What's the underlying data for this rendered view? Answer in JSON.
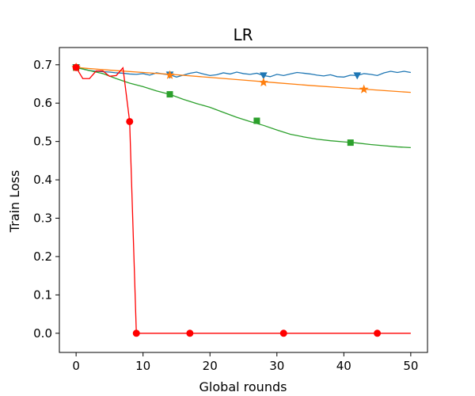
{
  "chart_data": {
    "type": "line",
    "title": "LR",
    "xlabel": "Global rounds",
    "ylabel": "Train Loss",
    "xlim": [
      -2.5,
      52.5
    ],
    "ylim": [
      -0.05,
      0.745
    ],
    "xticks": [
      0,
      10,
      20,
      30,
      40,
      50
    ],
    "yticks": [
      0.0,
      0.1,
      0.2,
      0.3,
      0.4,
      0.5,
      0.6,
      0.7
    ],
    "xtick_labels": [
      "0",
      "10",
      "20",
      "30",
      "40",
      "50"
    ],
    "ytick_labels": [
      "0.0",
      "0.1",
      "0.2",
      "0.3",
      "0.4",
      "0.5",
      "0.6",
      "0.7"
    ],
    "grid": false,
    "legend": "none",
    "series": [
      {
        "color": "#1f77b4",
        "marker": "triangle-down",
        "x": [
          0,
          1,
          2,
          3,
          4,
          5,
          6,
          7,
          8,
          9,
          10,
          11,
          12,
          13,
          14,
          15,
          16,
          17,
          18,
          19,
          20,
          21,
          22,
          23,
          24,
          25,
          26,
          27,
          28,
          29,
          30,
          31,
          32,
          33,
          34,
          35,
          36,
          37,
          38,
          39,
          40,
          41,
          42,
          43,
          44,
          45,
          46,
          47,
          48,
          49,
          50
        ],
        "y": [
          0.693,
          0.689,
          0.685,
          0.683,
          0.682,
          0.681,
          0.679,
          0.678,
          0.676,
          0.675,
          0.677,
          0.673,
          0.679,
          0.676,
          0.674,
          0.668,
          0.673,
          0.678,
          0.681,
          0.676,
          0.672,
          0.674,
          0.679,
          0.676,
          0.681,
          0.677,
          0.675,
          0.678,
          0.672,
          0.669,
          0.675,
          0.672,
          0.676,
          0.68,
          0.678,
          0.676,
          0.673,
          0.671,
          0.674,
          0.669,
          0.668,
          0.673,
          0.672,
          0.677,
          0.675,
          0.672,
          0.679,
          0.683,
          0.68,
          0.683,
          0.68
        ],
        "marker_x": [
          0,
          14,
          28,
          42
        ]
      },
      {
        "color": "#ff7f0e",
        "marker": "star",
        "x": [
          0,
          5,
          10,
          15,
          20,
          25,
          30,
          35,
          40,
          45,
          50
        ],
        "y": [
          0.693,
          0.686,
          0.68,
          0.674,
          0.667,
          0.66,
          0.653,
          0.646,
          0.64,
          0.634,
          0.628
        ],
        "marker_x": [
          0,
          14,
          28,
          43
        ],
        "marker_y": [
          0.693,
          0.673,
          0.654,
          0.636
        ]
      },
      {
        "color": "#2ca02c",
        "marker": "square",
        "x": [
          0,
          2,
          4,
          6,
          8,
          10,
          12,
          14,
          16,
          18,
          20,
          22,
          24,
          26,
          28,
          30,
          32,
          34,
          36,
          38,
          40,
          42,
          44,
          46,
          48,
          50
        ],
        "y": [
          0.693,
          0.685,
          0.677,
          0.664,
          0.652,
          0.643,
          0.632,
          0.623,
          0.61,
          0.599,
          0.589,
          0.576,
          0.563,
          0.552,
          0.542,
          0.53,
          0.519,
          0.512,
          0.506,
          0.502,
          0.499,
          0.496,
          0.492,
          0.489,
          0.486,
          0.484
        ],
        "marker_x": [
          0,
          14,
          27,
          41
        ],
        "marker_y": [
          0.693,
          0.623,
          0.554,
          0.497
        ]
      },
      {
        "color": "#ff0000",
        "marker": "circle",
        "x": [
          0,
          1,
          2,
          3,
          4,
          5,
          6,
          7,
          8,
          9,
          10,
          20,
          30,
          40,
          50
        ],
        "y": [
          0.693,
          0.664,
          0.664,
          0.684,
          0.684,
          0.67,
          0.672,
          0.692,
          0.552,
          0.0,
          0.0,
          0.0,
          0.0,
          0.0,
          0.0
        ],
        "marker_x": [
          0,
          8,
          9,
          17,
          31,
          45
        ],
        "marker_y": [
          0.693,
          0.552,
          0.0,
          0.0,
          0.0,
          0.0
        ]
      }
    ]
  }
}
